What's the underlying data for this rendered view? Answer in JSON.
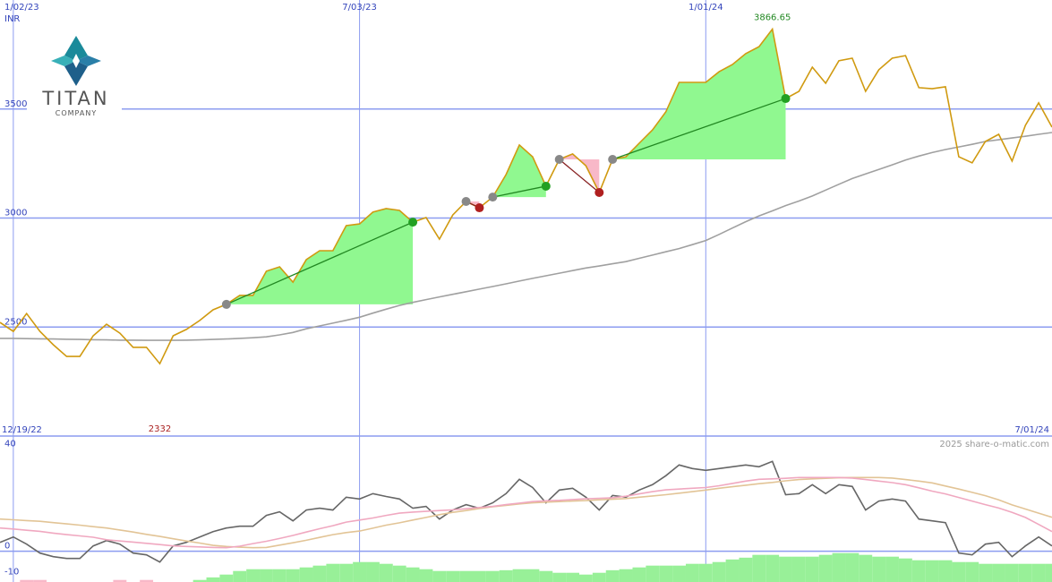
{
  "chart_data": [
    {
      "type": "line",
      "unit_label": "INR",
      "categories": [
        null,
        "1/02/23",
        null,
        null,
        null,
        null,
        null,
        null,
        null,
        null,
        null,
        null,
        null,
        null,
        null,
        null,
        null,
        null,
        null,
        null,
        null,
        null,
        null,
        null,
        null,
        null,
        null,
        "7/03/23",
        null,
        null,
        null,
        null,
        null,
        null,
        null,
        null,
        null,
        null,
        null,
        null,
        null,
        null,
        null,
        null,
        null,
        null,
        null,
        null,
        null,
        null,
        null,
        null,
        null,
        "1/01/24",
        null,
        null,
        null,
        null,
        null,
        null,
        null,
        null,
        null,
        null,
        null,
        null,
        null,
        null,
        null,
        null,
        null,
        null,
        null,
        null,
        null,
        null,
        null,
        null,
        null,
        null
      ],
      "period": [
        "12/19/22",
        "7/01/24"
      ],
      "series": [
        {
          "color": "#d09a10",
          "values": [
            2521,
            2480,
            2562,
            2480,
            2419,
            2365,
            2365,
            2460,
            2513,
            2472,
            2407,
            2407,
            2332,
            2460,
            2489,
            2530,
            2579,
            2604,
            2645,
            2645,
            2756,
            2776,
            2706,
            2809,
            2850,
            2850,
            2965,
            2973,
            3027,
            3043,
            3035,
            2981,
            3002,
            2903,
            3014,
            3076,
            3047,
            3096,
            3199,
            3335,
            3281,
            3146,
            3269,
            3294,
            3240,
            3117,
            3269,
            3281,
            3343,
            3404,
            3487,
            3622,
            3622,
            3622,
            3671,
            3704,
            3754,
            3786,
            3866.65,
            3548,
            3581,
            3692,
            3618,
            3721,
            3733,
            3581,
            3680,
            3733,
            3745,
            3598,
            3593,
            3602,
            3281,
            3253,
            3351,
            3384,
            3261,
            3425,
            3528,
            3417
          ]
        },
        {
          "color": "#a0a0a0",
          "values": [
            2448,
            2448,
            2447,
            2446,
            2445,
            2444,
            2443,
            2442,
            2441,
            2440,
            2440,
            2439,
            2439,
            2439,
            2440,
            2441,
            2443,
            2445,
            2448,
            2451,
            2455,
            2464,
            2475,
            2492,
            2505,
            2518,
            2531,
            2545,
            2564,
            2582,
            2599,
            2613,
            2626,
            2638,
            2650,
            2662,
            2674,
            2686,
            2698,
            2711,
            2723,
            2735,
            2747,
            2759,
            2771,
            2780,
            2790,
            2800,
            2815,
            2830,
            2845,
            2860,
            2878,
            2897,
            2925,
            2954,
            2983,
            3010,
            3033,
            3057,
            3078,
            3101,
            3128,
            3155,
            3181,
            3202,
            3223,
            3244,
            3266,
            3284,
            3300,
            3314,
            3326,
            3338,
            3351,
            3359,
            3367,
            3375,
            3384,
            3392
          ]
        }
      ],
      "signals": [
        {
          "start": 17,
          "end": 31
        },
        {
          "start": 35,
          "end": 36
        },
        {
          "start": 37,
          "end": 41
        },
        {
          "start": 42,
          "end": 45
        },
        {
          "start": 46,
          "end": 59
        }
      ],
      "annotations": [
        {
          "label": "3866.65",
          "value": 3866.65,
          "color": "#228822"
        },
        {
          "label": "2332",
          "value": 2332,
          "color": "#aa2222"
        }
      ],
      "ylim": [
        2000,
        4000
      ],
      "yticks": [
        2500,
        3000,
        3500
      ],
      "grid": true
    },
    {
      "type": "line",
      "series": [
        {
          "color": "#f0a8c0",
          "values": [
            9.1,
            8.7,
            8.2,
            7.8,
            7.1,
            6.5,
            6.0,
            5.5,
            4.5,
            4.0,
            3.6,
            3.1,
            2.6,
            2.1,
            1.9,
            1.7,
            1.5,
            1.4,
            2.0,
            3.0,
            3.9,
            5.0,
            6.2,
            7.5,
            8.8,
            10.0,
            11.4,
            12.2,
            13.0,
            14.0,
            14.9,
            15.3,
            15.6,
            15.9,
            16.2,
            16.6,
            17.1,
            17.5,
            18.2,
            18.8,
            19.4,
            19.7,
            19.9,
            20.2,
            20.5,
            20.7,
            20.9,
            21.5,
            22.4,
            23.3,
            24.0,
            24.3,
            24.6,
            24.9,
            25.6,
            26.5,
            27.4,
            28.1,
            28.3,
            28.5,
            28.8,
            28.8,
            28.8,
            28.8,
            28.6,
            28.0,
            27.4,
            26.8,
            26.0,
            24.8,
            23.5,
            22.4,
            21.0,
            19.6,
            18.2,
            16.9,
            15.2,
            13.2,
            10.5,
            7.7
          ]
        },
        {
          "color": "#e2c496",
          "values": [
            12.6,
            12.3,
            12.0,
            11.7,
            11.2,
            10.7,
            10.2,
            9.6,
            9.1,
            8.3,
            7.5,
            6.6,
            5.8,
            4.9,
            4.0,
            3.2,
            2.3,
            1.9,
            1.6,
            1.4,
            1.5,
            2.4,
            3.3,
            4.3,
            5.4,
            6.5,
            7.3,
            7.9,
            9.0,
            10.2,
            11.1,
            12.2,
            13.2,
            14.3,
            15.2,
            15.9,
            16.7,
            17.4,
            17.9,
            18.5,
            18.9,
            19.2,
            19.4,
            19.6,
            19.8,
            20.1,
            20.3,
            20.6,
            21.1,
            21.6,
            22.1,
            22.7,
            23.3,
            23.9,
            24.6,
            25.2,
            25.8,
            26.4,
            26.9,
            27.5,
            28.0,
            28.3,
            28.5,
            28.7,
            28.8,
            28.8,
            28.8,
            28.6,
            28.0,
            27.4,
            26.7,
            25.5,
            24.3,
            23.0,
            21.7,
            20.1,
            18.1,
            16.5,
            14.9,
            13.3
          ]
        },
        {
          "color": "#666666",
          "values": [
            3.5,
            5.6,
            2.8,
            -0.7,
            -2.1,
            -2.8,
            -2.8,
            2.1,
            4.2,
            2.8,
            -0.7,
            -1.4,
            -4.2,
            2.1,
            3.5,
            5.6,
            7.7,
            9.1,
            9.8,
            9.8,
            14,
            15.4,
            11.9,
            16.1,
            16.8,
            16.1,
            21.1,
            20.4,
            22.5,
            21.4,
            20.4,
            16.8,
            17.5,
            12.6,
            16.1,
            18.2,
            16.8,
            18.9,
            22.5,
            28.1,
            24.9,
            18.9,
            23.9,
            24.6,
            21.1,
            16.1,
            21.8,
            21.1,
            23.9,
            26,
            29.5,
            33.7,
            32.3,
            31.6,
            32.3,
            33,
            33.7,
            33,
            35.1,
            22.1,
            22.5,
            26,
            22.5,
            26,
            25.3,
            16.1,
            19.6,
            20.4,
            19.6,
            12.6,
            11.9,
            11.2,
            -0.7,
            -1.4,
            2.8,
            3.5,
            -2.1,
            2.1,
            5.6,
            2.1
          ]
        }
      ],
      "bars": [
        {
          "color": "#98f098",
          "values": [
            null,
            null,
            null,
            null,
            null,
            null,
            null,
            null,
            null,
            null,
            null,
            null,
            null,
            null,
            null,
            -11.2,
            -10.2,
            -9.1,
            -7.7,
            -7,
            -7,
            -7,
            -7,
            -6.3,
            -5.6,
            -4.9,
            -4.9,
            -4.2,
            -4.2,
            -4.9,
            -5.6,
            -6.3,
            -7,
            -7.7,
            -7.7,
            -7.7,
            -7.7,
            -7.7,
            -7.4,
            -7,
            -7,
            -7.7,
            -8.4,
            -8.4,
            -9.1,
            -8.4,
            -7.4,
            -7,
            -6.3,
            -5.6,
            -5.6,
            -5.6,
            -4.9,
            -4.9,
            -4.2,
            -3.2,
            -2.5,
            -1.4,
            -1.4,
            -2.1,
            -2.1,
            -2.1,
            -1.4,
            -0.7,
            -0.7,
            -1.4,
            -2.1,
            -2.1,
            -2.8,
            -3.5,
            -3.5,
            -3.5,
            -4.2,
            -4.2,
            -4.9,
            -4.9,
            -4.9,
            -4.9,
            -4.9,
            -4.9
          ]
        },
        {
          "color": "#f8b8c8",
          "values": [
            null,
            null,
            -11.2,
            -11.2,
            null,
            null,
            null,
            null,
            null,
            -11.2,
            null,
            -11.2,
            null,
            null,
            null,
            null,
            null,
            null,
            null,
            null,
            null,
            null,
            null,
            null,
            null,
            null,
            null,
            null,
            null,
            null,
            null,
            null,
            null,
            null,
            null,
            null,
            null,
            null,
            null,
            null,
            null,
            null,
            null,
            null,
            null,
            null,
            null,
            null,
            null,
            null,
            null,
            null,
            null,
            null,
            null,
            null,
            null,
            null,
            null,
            null,
            null,
            null,
            null,
            null,
            null,
            null,
            null,
            null,
            null,
            null,
            null,
            null,
            null,
            null,
            null,
            null,
            null,
            null,
            null,
            null
          ]
        }
      ],
      "ylim": [
        -12,
        45
      ],
      "yticks": [
        40,
        0,
        -10
      ],
      "zero_line": true
    }
  ],
  "logo": {
    "name": "TITAN",
    "subtitle": "COMPANY"
  },
  "watermark": "2025 share-o-matic.com"
}
